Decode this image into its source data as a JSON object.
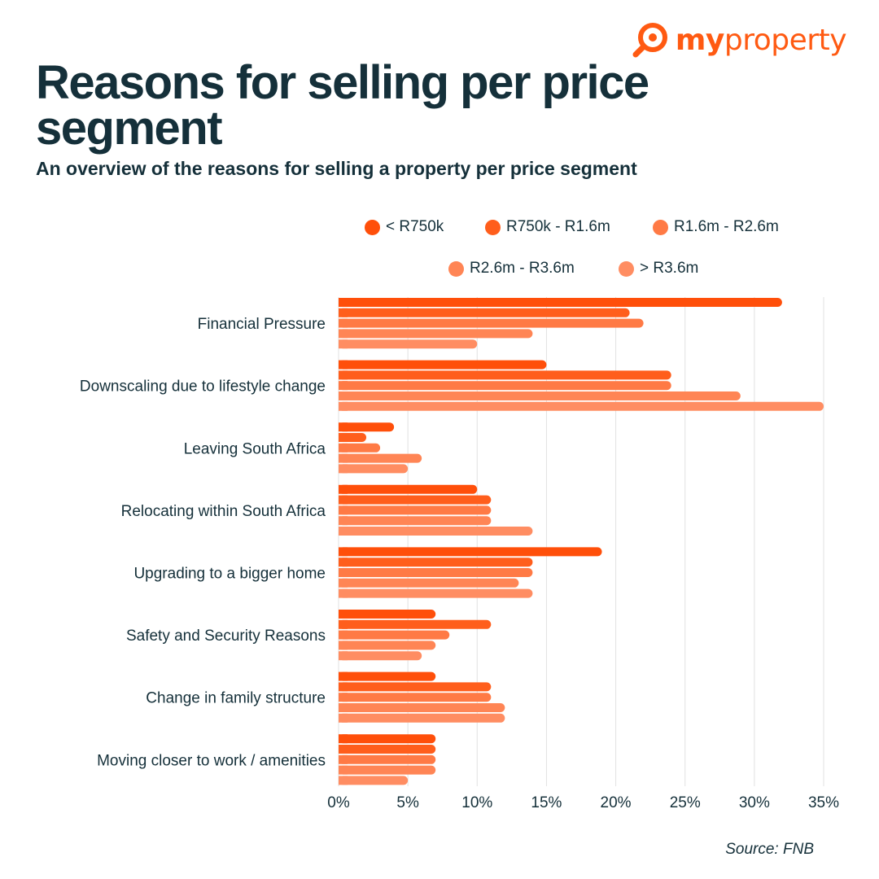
{
  "brand": {
    "prefix": "my",
    "name": "property",
    "accent": "#ff5a12",
    "icon": "magnifier-pin-icon"
  },
  "title": "Reasons for selling per price segment",
  "subtitle": "An overview of the reasons for selling a property per price segment",
  "source": "Source: FNB",
  "chart_data": {
    "type": "bar",
    "orientation": "horizontal",
    "categories": [
      "Financial Pressure",
      "Downscaling due to lifestyle change",
      "Leaving South Africa",
      "Relocating within South Africa",
      "Upgrading to a bigger home",
      "Safety and Security Reasons",
      "Change in family structure",
      "Moving closer to work / amenities"
    ],
    "series": [
      {
        "name": "< R750k",
        "color": "#ff4f0a",
        "values": [
          32,
          15,
          4,
          10,
          19,
          7,
          7,
          7
        ]
      },
      {
        "name": "R750k - R1.6m",
        "color": "#ff5e1c",
        "values": [
          21,
          24,
          2,
          11,
          14,
          11,
          11,
          7
        ]
      },
      {
        "name": "R1.6m - R2.6m",
        "color": "#ff7a45",
        "values": [
          22,
          24,
          3,
          11,
          14,
          8,
          11,
          7
        ]
      },
      {
        "name": "R2.6m - R3.6m",
        "color": "#ff8555",
        "values": [
          14,
          29,
          6,
          11,
          13,
          7,
          12,
          7
        ]
      },
      {
        "name": "> R3.6m",
        "color": "#ff8d62",
        "values": [
          10,
          35,
          5,
          14,
          14,
          6,
          12,
          5
        ]
      }
    ],
    "xlim": [
      0,
      35
    ],
    "xticks": [
      "0%",
      "5%",
      "10%",
      "15%",
      "20%",
      "25%",
      "30%",
      "35%"
    ],
    "xlabel": "",
    "ylabel": "",
    "grid": "vertical",
    "legend": "top-right"
  }
}
